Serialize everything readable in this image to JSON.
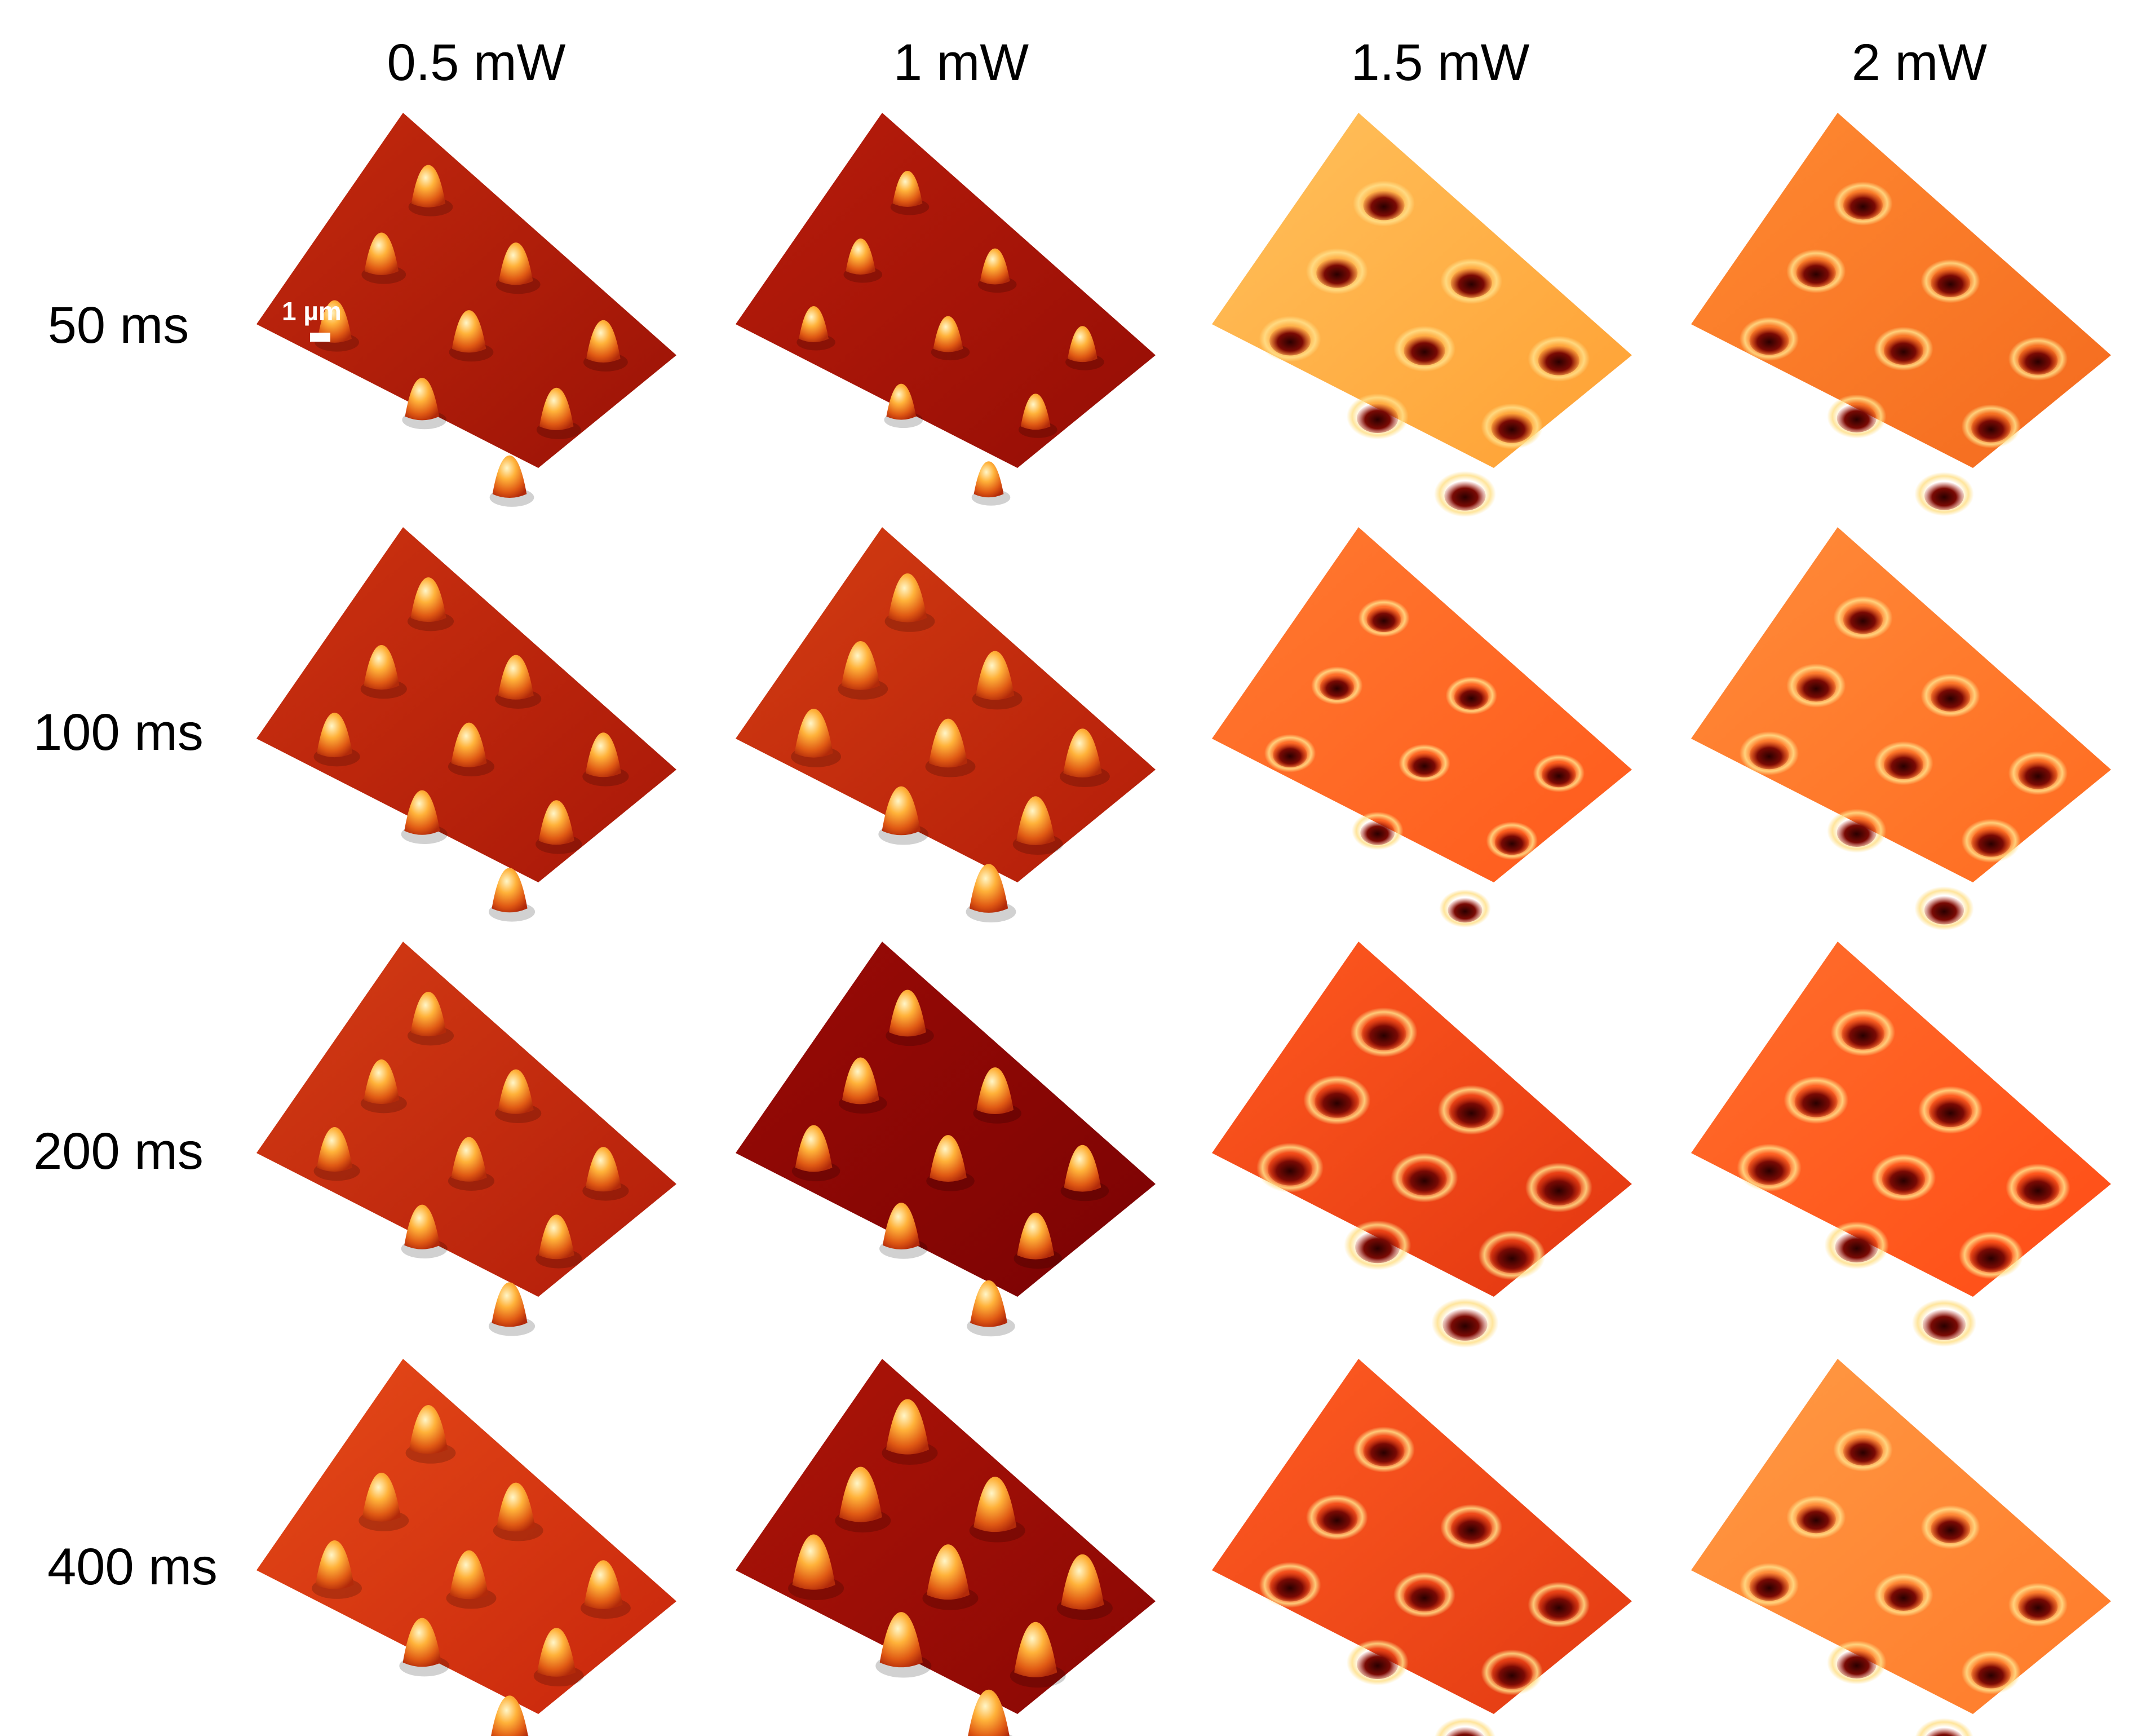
{
  "figure": {
    "columns": [
      {
        "label": "0.5 mW"
      },
      {
        "label": "1 mW"
      },
      {
        "label": "1.5 mW"
      },
      {
        "label": "2 mW"
      }
    ],
    "rows": [
      {
        "label": "50 ms"
      },
      {
        "label": "100 ms"
      },
      {
        "label": "200 ms"
      },
      {
        "label": "400 ms"
      }
    ],
    "scale_bar": {
      "label": "1 µm"
    },
    "feature_grid": "3x3",
    "panels": [
      [
        {
          "feature": "bump",
          "size": 0.55,
          "base": "#9b1206",
          "light": "#c42a0e"
        },
        {
          "feature": "bump",
          "size": 0.4,
          "base": "#950d05",
          "light": "#b81d0b"
        },
        {
          "feature": "pit",
          "size": 0.55,
          "base": "#ffa033",
          "light": "#ffc15c"
        },
        {
          "feature": "pit",
          "size": 0.5,
          "base": "#f46a1e",
          "light": "#ff8a32"
        }
      ],
      [
        {
          "feature": "bump",
          "size": 0.6,
          "base": "#a81708",
          "light": "#cd3310"
        },
        {
          "feature": "bump",
          "size": 0.7,
          "base": "#b31c09",
          "light": "#d33d12"
        },
        {
          "feature": "pit",
          "size": 0.35,
          "base": "#ff5a1c",
          "light": "#ff7a30"
        },
        {
          "feature": "pit",
          "size": 0.5,
          "base": "#ff6a20",
          "light": "#ff8c3a"
        }
      ],
      [
        {
          "feature": "bump",
          "size": 0.6,
          "base": "#b31d0a",
          "light": "#d43c14"
        },
        {
          "feature": "bump",
          "size": 0.65,
          "base": "#7b0303",
          "light": "#9a0b06"
        },
        {
          "feature": "pit",
          "size": 0.65,
          "base": "#e23610",
          "light": "#ff5a20"
        },
        {
          "feature": "pit",
          "size": 0.6,
          "base": "#ff4c16",
          "light": "#ff6f2c"
        }
      ],
      [
        {
          "feature": "bump",
          "size": 0.7,
          "base": "#c8260c",
          "light": "#e54a18"
        },
        {
          "feature": "bump",
          "size": 0.85,
          "base": "#8a0704",
          "light": "#ad1508"
        },
        {
          "feature": "pit",
          "size": 0.55,
          "base": "#e23a12",
          "light": "#ff5c22"
        },
        {
          "feature": "pit",
          "size": 0.5,
          "base": "#ff7a2a",
          "light": "#ff9a44"
        }
      ]
    ]
  }
}
